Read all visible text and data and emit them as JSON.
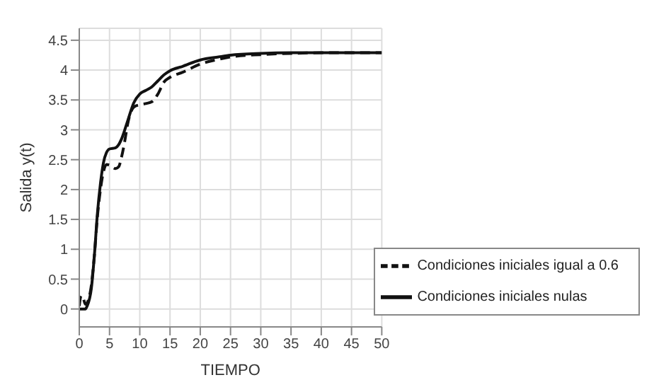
{
  "chart_data": {
    "type": "line",
    "xlabel": "TIEMPO",
    "ylabel": "Salida y(t)",
    "xlim": [
      0,
      50
    ],
    "xticks": [
      0,
      5,
      10,
      15,
      20,
      25,
      30,
      35,
      40,
      45,
      50
    ],
    "ylim": [
      -0.3,
      4.7
    ],
    "yticks": [
      0,
      0.5,
      1,
      1.5,
      2,
      2.5,
      3,
      3.5,
      4,
      4.5
    ],
    "grid": true,
    "legend": "bottom right",
    "marker": "none",
    "series": [
      {
        "name": "Condiciones iniciales igual a 0.6",
        "color": "#111111",
        "line_style": "dashed",
        "x": [
          0,
          0.3,
          0.6,
          1,
          1.5,
          2,
          2.5,
          3,
          3.5,
          4,
          4.5,
          5,
          6,
          6.5,
          7,
          7.5,
          8,
          9,
          10,
          11,
          12,
          13,
          14,
          15,
          17,
          20,
          23,
          25,
          30,
          35,
          40,
          50
        ],
        "values": [
          0.05,
          0.22,
          0.2,
          0.08,
          0.15,
          0.4,
          0.9,
          1.55,
          2.0,
          2.3,
          2.42,
          2.41,
          2.35,
          2.38,
          2.55,
          2.8,
          3.1,
          3.38,
          3.42,
          3.44,
          3.47,
          3.6,
          3.8,
          3.88,
          3.96,
          4.1,
          4.18,
          4.22,
          4.26,
          4.28,
          4.29,
          4.29
        ]
      },
      {
        "name": "Condiciones iniciales nulas",
        "color": "#111111",
        "line_style": "solid",
        "x": [
          0,
          1,
          1.3,
          2,
          2.5,
          3,
          3.5,
          4,
          4.5,
          5,
          6,
          6.5,
          7,
          8,
          9,
          10,
          11,
          12,
          13,
          14,
          15,
          17,
          20,
          23,
          25,
          30,
          35,
          40,
          50
        ],
        "values": [
          0,
          0,
          0.05,
          0.35,
          0.9,
          1.6,
          2.1,
          2.45,
          2.62,
          2.68,
          2.7,
          2.75,
          2.85,
          3.15,
          3.45,
          3.6,
          3.66,
          3.72,
          3.82,
          3.92,
          3.99,
          4.06,
          4.17,
          4.22,
          4.25,
          4.28,
          4.29,
          4.29,
          4.29
        ]
      }
    ]
  }
}
